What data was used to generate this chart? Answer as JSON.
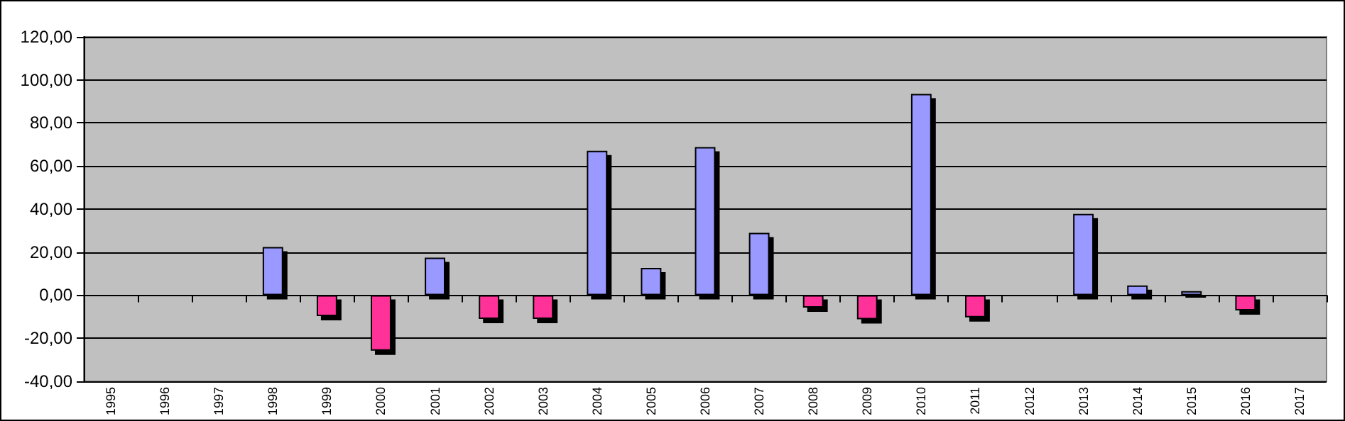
{
  "chart_data": {
    "type": "bar",
    "categories": [
      "1995",
      "1996",
      "1997",
      "1998",
      "1999",
      "2000",
      "2001",
      "2002",
      "2003",
      "2004",
      "2005",
      "2006",
      "2007",
      "2008",
      "2009",
      "2010",
      "2011",
      "2012",
      "2013",
      "2014",
      "2015",
      "2016",
      "2017"
    ],
    "values": [
      null,
      null,
      null,
      22.4,
      -9.7,
      -25.8,
      17.4,
      -11,
      -11,
      67.1,
      12.7,
      68.8,
      29,
      -5.8,
      -11.2,
      93.5,
      -10.3,
      null,
      37.8,
      4.5,
      1.9,
      -7.1,
      null
    ],
    "colors": [
      "#9999ff",
      "#9999ff",
      "#9999ff",
      "#9999ff",
      "#ff3399",
      "#ff3399",
      "#9999ff",
      "#ff3399",
      "#ff3399",
      "#9999ff",
      "#9999ff",
      "#9999ff",
      "#9999ff",
      "#ff3399",
      "#ff3399",
      "#9999ff",
      "#ff3399",
      "#9999ff",
      "#9999ff",
      "#9999ff",
      "#9999ff",
      "#ff3399",
      "#9999ff"
    ],
    "ylim": [
      -40,
      120
    ],
    "yticks": [
      {
        "value": -40,
        "label": "-40,00"
      },
      {
        "value": -20,
        "label": "-20,00"
      },
      {
        "value": 0,
        "label": "0,00"
      },
      {
        "value": 20,
        "label": "20,00"
      },
      {
        "value": 40,
        "label": "40,00"
      },
      {
        "value": 60,
        "label": "60,00"
      },
      {
        "value": 80,
        "label": "80,00"
      },
      {
        "value": 100,
        "label": "100,00"
      },
      {
        "value": 120,
        "label": "120,00"
      }
    ],
    "grid": "y"
  }
}
